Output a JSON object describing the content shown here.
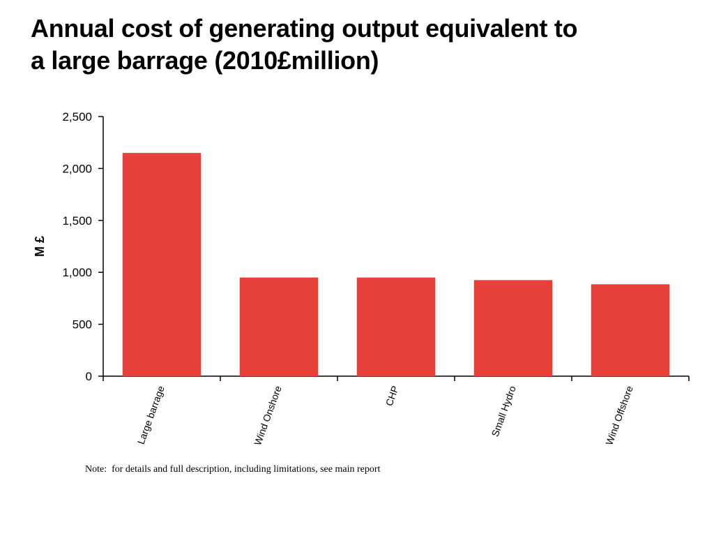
{
  "title": {
    "line1": "Annual cost of generating output equivalent to",
    "line2": "a large barrage (2010£million)"
  },
  "note": "Note:  for details and full description, including limitations, see main report",
  "colors": {
    "bar": "#e8403a",
    "axis": "#000000",
    "text": "#000000"
  },
  "chart_data": {
    "type": "bar",
    "title": "Annual cost of generating output equivalent to a large barrage (2010£million)",
    "xlabel": "",
    "ylabel": "M £",
    "categories": [
      "Large barrage",
      "Wind Onshore",
      "CHP",
      "Small Hydro",
      "Wind Offshore"
    ],
    "values": [
      2150,
      950,
      950,
      925,
      885
    ],
    "ylim": [
      0,
      2500
    ],
    "yticks": [
      0,
      500,
      1000,
      1500,
      2000,
      2500
    ],
    "ytick_labels": [
      "0",
      "500",
      "1,000",
      "1,500",
      "2,000",
      "2,500"
    ],
    "grid": false,
    "legend": "none"
  }
}
